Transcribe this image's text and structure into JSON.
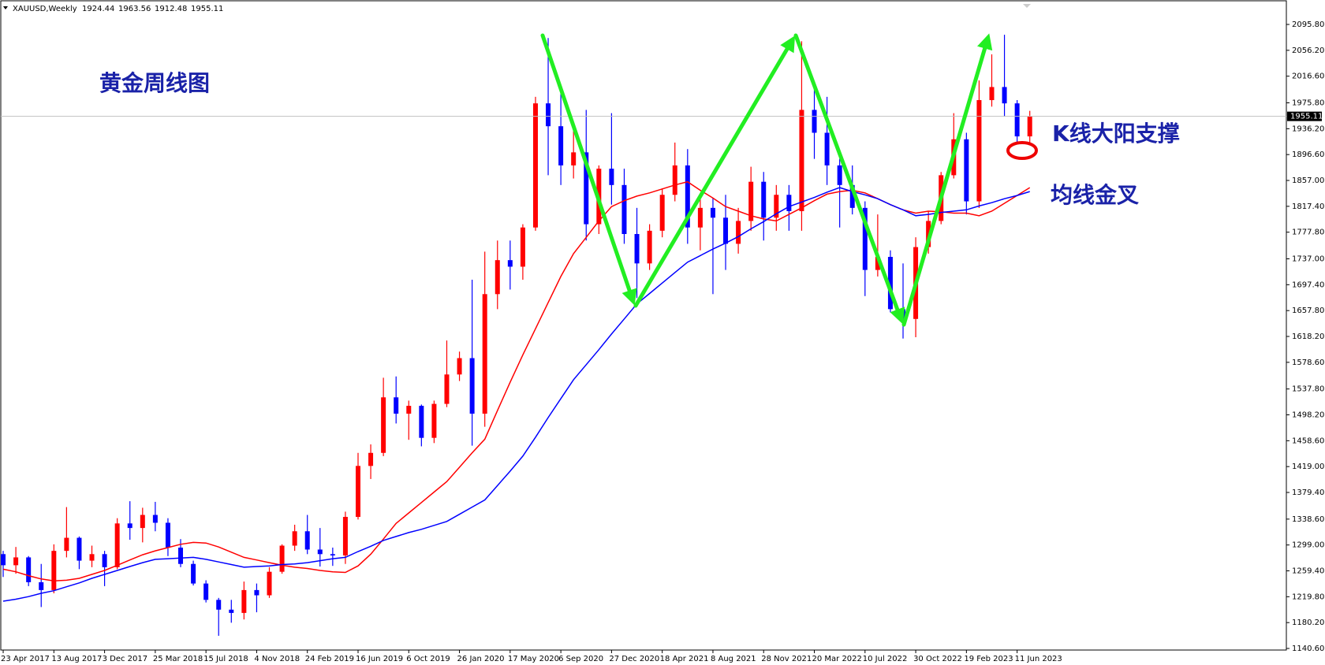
{
  "chart_data": {
    "type": "candlestick",
    "symbol": "XAUUSD,Weekly",
    "title": "黄金周线图",
    "annotations": [
      "K线大阳支撑",
      "均线金叉"
    ],
    "up_color": "#ff0000",
    "down_color": "#0000ff",
    "categories": [
      "23 Apr 2017",
      null,
      null,
      null,
      "13 Aug 2017",
      null,
      null,
      null,
      "3 Dec 2017",
      null,
      null,
      null,
      "25 Mar 2018",
      null,
      null,
      null,
      "15 Jul 2018",
      null,
      null,
      null,
      "4 Nov 2018",
      null,
      null,
      null,
      "24 Feb 2019",
      null,
      null,
      null,
      "16 Jun 2019",
      null,
      null,
      null,
      "6 Oct 2019",
      null,
      null,
      null,
      "26 Jan 2020",
      null,
      null,
      null,
      "17 May 2020",
      null,
      null,
      null,
      "6 Sep 2020",
      null,
      null,
      null,
      "27 Dec 2020",
      null,
      null,
      null,
      "18 Apr 2021",
      null,
      null,
      null,
      "8 Aug 2021",
      null,
      null,
      null,
      "28 Nov 2021",
      null,
      null,
      null,
      "20 Mar 2022",
      null,
      null,
      null,
      "10 Jul 2022",
      null,
      null,
      null,
      "30 Oct 2022",
      null,
      null,
      null,
      "19 Feb 2023",
      null,
      null,
      null,
      "11 Jun 2023",
      null
    ],
    "open": [
      1285,
      1268,
      1280,
      1242,
      1230,
      1290,
      1310,
      1275,
      1285,
      1265,
      1332,
      1325,
      1345,
      1333,
      1295,
      1270,
      1240,
      1215,
      1200,
      1195,
      1230,
      1222,
      1258,
      1298,
      1320,
      1292,
      1285,
      1283,
      1342,
      1420,
      1440,
      1525,
      1500,
      1512,
      1463,
      1515,
      1560,
      1585,
      1500,
      1683,
      1735,
      1725,
      1785,
      1975,
      1940,
      1880,
      1900,
      1790,
      1875,
      1850,
      1775,
      1730,
      1780,
      1835,
      1880,
      1785,
      1815,
      1800,
      1760,
      1795,
      1855,
      1800,
      1835,
      1810,
      1965,
      1930,
      1880,
      1850,
      1815,
      1720,
      1740,
      1660,
      1645,
      1755,
      1795,
      1865,
      1920,
      1825,
      1980,
      2000,
      1975,
      1924.44
    ],
    "high": [
      1290,
      1296,
      1282,
      1270,
      1300,
      1357,
      1312,
      1298,
      1290,
      1340,
      1366,
      1356,
      1365,
      1340,
      1308,
      1275,
      1245,
      1218,
      1215,
      1243,
      1240,
      1265,
      1300,
      1330,
      1345,
      1325,
      1295,
      1350,
      1440,
      1453,
      1555,
      1557,
      1520,
      1514,
      1520,
      1612,
      1595,
      1705,
      1748,
      1765,
      1765,
      1790,
      1985,
      2075,
      1990,
      1935,
      1965,
      1880,
      1960,
      1875,
      1815,
      1790,
      1845,
      1915,
      1905,
      1835,
      1830,
      1835,
      1815,
      1878,
      1870,
      1850,
      1850,
      2070,
      2000,
      1985,
      1890,
      1880,
      1825,
      1805,
      1750,
      1730,
      1770,
      1810,
      1870,
      1960,
      1930,
      2010,
      2050,
      2080,
      1980,
      1963.56
    ],
    "low": [
      1250,
      1255,
      1236,
      1204,
      1225,
      1280,
      1262,
      1265,
      1236,
      1262,
      1307,
      1303,
      1320,
      1282,
      1265,
      1237,
      1211,
      1160,
      1180,
      1185,
      1196,
      1218,
      1255,
      1290,
      1285,
      1266,
      1267,
      1270,
      1338,
      1400,
      1435,
      1485,
      1460,
      1450,
      1455,
      1510,
      1550,
      1451,
      1480,
      1660,
      1690,
      1705,
      1780,
      1865,
      1850,
      1860,
      1765,
      1775,
      1820,
      1760,
      1677,
      1720,
      1770,
      1825,
      1760,
      1750,
      1683,
      1720,
      1745,
      1780,
      1765,
      1780,
      1780,
      1780,
      1890,
      1850,
      1785,
      1805,
      1680,
      1710,
      1655,
      1615,
      1617,
      1745,
      1790,
      1860,
      1805,
      1815,
      1970,
      1955,
      1915,
      1912.48
    ],
    "close": [
      1268,
      1280,
      1242,
      1230,
      1290,
      1310,
      1275,
      1285,
      1265,
      1332,
      1325,
      1345,
      1333,
      1295,
      1270,
      1240,
      1215,
      1200,
      1195,
      1230,
      1222,
      1258,
      1298,
      1320,
      1292,
      1285,
      1283,
      1342,
      1420,
      1440,
      1525,
      1500,
      1512,
      1463,
      1515,
      1560,
      1585,
      1500,
      1683,
      1735,
      1725,
      1785,
      1975,
      1940,
      1880,
      1900,
      1790,
      1875,
      1850,
      1775,
      1730,
      1780,
      1835,
      1880,
      1785,
      1815,
      1800,
      1760,
      1795,
      1855,
      1800,
      1835,
      1810,
      1965,
      1930,
      1880,
      1850,
      1815,
      1720,
      1740,
      1660,
      1645,
      1755,
      1795,
      1865,
      1920,
      1825,
      1980,
      2000,
      1975,
      1924.44,
      1955.11
    ],
    "lines": [
      {
        "color": "#ff0000",
        "values": [
          1262,
          1258,
          1252,
          1247,
          1244,
          1245,
          1248,
          1254,
          1260,
          1268,
          1276,
          1284,
          1290,
          1295,
          1300,
          1303,
          1302,
          1296,
          1288,
          1280,
          1276,
          1272,
          1268,
          1265,
          1263,
          1260,
          1258,
          1257,
          1267,
          1285,
          1308,
          1332,
          1348,
          1364,
          1380,
          1396,
          1418,
          1440,
          1461,
          1505,
          1548,
          1590,
          1630,
          1670,
          1710,
          1745,
          1770,
          1795,
          1817,
          1826,
          1833,
          1838,
          1844,
          1850,
          1855,
          1842,
          1830,
          1817,
          1810,
          1803,
          1798,
          1795,
          1805,
          1815,
          1826,
          1836,
          1840,
          1842,
          1838,
          1829,
          1820,
          1812,
          1807,
          1810,
          1809,
          1807,
          1807,
          1803,
          1810,
          1822,
          1834,
          1846
        ]
      },
      {
        "color": "#0000ff",
        "values": [
          1213,
          1216,
          1220,
          1225,
          1229,
          1235,
          1241,
          1248,
          1254,
          1260,
          1266,
          1272,
          1277,
          1278,
          1279,
          1280,
          1277,
          1273,
          1269,
          1265,
          1266,
          1267,
          1269,
          1270,
          1272,
          1275,
          1278,
          1280,
          1289,
          1297,
          1306,
          1312,
          1318,
          1323,
          1329,
          1335,
          1346,
          1357,
          1368,
          1390,
          1412,
          1435,
          1464,
          1494,
          1523,
          1552,
          1575,
          1598,
          1622,
          1645,
          1668,
          1684,
          1700,
          1716,
          1732,
          1742,
          1752,
          1761,
          1771,
          1783,
          1794,
          1806,
          1817,
          1824,
          1831,
          1839,
          1846,
          1840,
          1835,
          1829,
          1820,
          1812,
          1803,
          1805,
          1808,
          1810,
          1812,
          1818,
          1823,
          1829,
          1834,
          1840
        ]
      }
    ],
    "ylim": [
      1138.2,
      2130.8
    ],
    "yticks": [
      {
        "value": 2095.8,
        "label": "2095.80"
      },
      {
        "value": 2056.2,
        "label": "2056.20"
      },
      {
        "value": 2016.6,
        "label": "2016.60"
      },
      {
        "value": 1975.8,
        "label": "1975.80"
      },
      {
        "value": 1936.2,
        "label": "1936.20"
      },
      {
        "value": 1896.6,
        "label": "1896.60"
      },
      {
        "value": 1857,
        "label": "1857.00"
      },
      {
        "value": 1817.4,
        "label": "1817.40"
      },
      {
        "value": 1777.8,
        "label": "1777.80"
      },
      {
        "value": 1737,
        "label": "1737.00"
      },
      {
        "value": 1697.4,
        "label": "1697.40"
      },
      {
        "value": 1657.8,
        "label": "1657.80"
      },
      {
        "value": 1618.2,
        "label": "1618.20"
      },
      {
        "value": 1578.6,
        "label": "1578.60"
      },
      {
        "value": 1537.8,
        "label": "1537.80"
      },
      {
        "value": 1498.2,
        "label": "1498.20"
      },
      {
        "value": 1458.6,
        "label": "1458.60"
      },
      {
        "value": 1419,
        "label": "1419.00"
      },
      {
        "value": 1379.4,
        "label": "1379.40"
      },
      {
        "value": 1338.6,
        "label": "1338.60"
      },
      {
        "value": 1299,
        "label": "1299.00"
      },
      {
        "value": 1259.4,
        "label": "1259.40"
      },
      {
        "value": 1219.8,
        "label": "1219.80"
      },
      {
        "value": 1180.2,
        "label": "1180.20"
      },
      {
        "value": 1140.6,
        "label": "1140.60"
      }
    ],
    "grid": false
  }
}
